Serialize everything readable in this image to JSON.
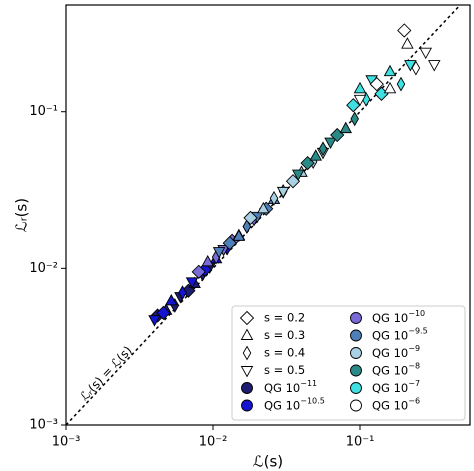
{
  "chart_data": {
    "type": "scatter",
    "log_x": true,
    "log_y": true,
    "x_label": "ℒ(s)",
    "y_label": "ℒᵣ(s)",
    "annotation": "ℒᵣ(s) = ℒ(s)",
    "xlim": [
      0.001,
      0.56
    ],
    "ylim": [
      0.001,
      0.48
    ],
    "xticks": [
      {
        "value": 0.001,
        "label": "10⁻³"
      },
      {
        "value": 0.01,
        "label": "10⁻²"
      },
      {
        "value": 0.1,
        "label": "10⁻¹"
      }
    ],
    "yticks": [
      {
        "value": 0.001,
        "label": "10⁻³"
      },
      {
        "value": 0.01,
        "label": "10⁻²"
      },
      {
        "value": 0.1,
        "label": "10⁻¹"
      }
    ],
    "legend_position": "lower right",
    "legend_markers": [
      {
        "label": "s = 0.2",
        "shape": "diamond"
      },
      {
        "label": "s = 0.3",
        "shape": "triangle-up"
      },
      {
        "label": "s = 0.4",
        "shape": "thin-diamond"
      },
      {
        "label": "s = 0.5",
        "shape": "triangle-down"
      }
    ],
    "series": [
      {
        "name": "QG 10",
        "exp": "−11",
        "color": "#1c1c70",
        "x": [
          0.0042,
          0.0048,
          0.0055,
          0.006,
          0.0068,
          0.0075,
          0.0085,
          0.0095
        ],
        "y": [
          0.005,
          0.0054,
          0.0058,
          0.0066,
          0.0072,
          0.008,
          0.0092,
          0.0102
        ],
        "shapes": [
          "diamond",
          "triangle-up",
          "thin-diamond",
          "triangle-down",
          "diamond",
          "triangle-up",
          "thin-diamond",
          "triangle-down"
        ]
      },
      {
        "name": "QG 10",
        "exp": "−10.5",
        "color": "#1414d2",
        "x": [
          0.004,
          0.0046,
          0.0052,
          0.0062,
          0.0072,
          0.0088,
          0.0105,
          0.0125
        ],
        "y": [
          0.0047,
          0.0052,
          0.0062,
          0.007,
          0.0082,
          0.0098,
          0.0115,
          0.0135
        ],
        "shapes": [
          "triangle-down",
          "diamond",
          "triangle-up",
          "thin-diamond",
          "triangle-down",
          "diamond",
          "triangle-up",
          "thin-diamond"
        ]
      },
      {
        "name": "QG 10",
        "exp": "−10",
        "color": "#7a6ad8",
        "x": [
          0.008,
          0.0092,
          0.0105,
          0.0118,
          0.0135,
          0.015,
          0.017,
          0.019
        ],
        "y": [
          0.0095,
          0.011,
          0.0118,
          0.0132,
          0.015,
          0.0162,
          0.0185,
          0.0205
        ],
        "shapes": [
          "diamond",
          "triangle-up",
          "thin-diamond",
          "triangle-down",
          "diamond",
          "triangle-up",
          "thin-diamond",
          "triangle-down"
        ]
      },
      {
        "name": "QG 10",
        "exp": "−9.5",
        "color": "#4f7fb8",
        "x": [
          0.011,
          0.013,
          0.015,
          0.017,
          0.02,
          0.023,
          0.026,
          0.03
        ],
        "y": [
          0.0128,
          0.0145,
          0.016,
          0.0185,
          0.0215,
          0.024,
          0.0275,
          0.031
        ],
        "shapes": [
          "triangle-down",
          "diamond",
          "triangle-up",
          "thin-diamond",
          "triangle-down",
          "diamond",
          "triangle-up",
          "thin-diamond"
        ]
      },
      {
        "name": "QG 10",
        "exp": "−9",
        "color": "#a9d1e3",
        "x": [
          0.018,
          0.022,
          0.026,
          0.03,
          0.035,
          0.04,
          0.048,
          0.056
        ],
        "y": [
          0.021,
          0.024,
          0.028,
          0.031,
          0.036,
          0.041,
          0.048,
          0.055
        ],
        "shapes": [
          "diamond",
          "triangle-up",
          "thin-diamond",
          "triangle-down",
          "diamond",
          "triangle-up",
          "thin-diamond",
          "triangle-down"
        ]
      },
      {
        "name": "QG 10",
        "exp": "−8",
        "color": "#2a8a88",
        "x": [
          0.038,
          0.044,
          0.05,
          0.056,
          0.063,
          0.07,
          0.08,
          0.092
        ],
        "y": [
          0.04,
          0.047,
          0.052,
          0.058,
          0.064,
          0.071,
          0.078,
          0.09
        ],
        "shapes": [
          "triangle-down",
          "diamond",
          "triangle-up",
          "thin-diamond",
          "triangle-down",
          "diamond",
          "triangle-up",
          "thin-diamond"
        ]
      },
      {
        "name": "QG 10",
        "exp": "−7",
        "color": "#3ee0e2",
        "x": [
          0.09,
          0.1,
          0.11,
          0.12,
          0.14,
          0.16,
          0.19,
          0.22
        ],
        "y": [
          0.11,
          0.14,
          0.12,
          0.16,
          0.13,
          0.18,
          0.15,
          0.2
        ],
        "shapes": [
          "diamond",
          "triangle-up",
          "thin-diamond",
          "triangle-down",
          "diamond",
          "triangle-up",
          "thin-diamond",
          "triangle-down"
        ]
      },
      {
        "name": "QG 10",
        "exp": "−6",
        "color": "#ffffff",
        "x": [
          0.1,
          0.13,
          0.16,
          0.2,
          0.21,
          0.24,
          0.28,
          0.32
        ],
        "y": [
          0.12,
          0.15,
          0.14,
          0.33,
          0.27,
          0.19,
          0.24,
          0.2
        ],
        "shapes": [
          "triangle-down",
          "diamond",
          "triangle-up",
          "diamond",
          "triangle-up",
          "thin-diamond",
          "triangle-down",
          "triangle-down"
        ]
      }
    ]
  }
}
